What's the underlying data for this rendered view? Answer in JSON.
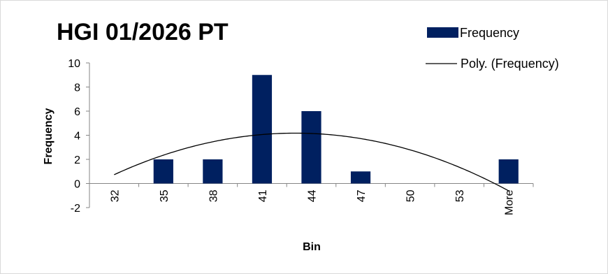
{
  "chart_data": {
    "type": "bar",
    "title": "HGI 01/2026 PT",
    "xlabel": "Bin",
    "ylabel": "Frequency",
    "categories": [
      "32",
      "35",
      "38",
      "41",
      "44",
      "47",
      "50",
      "53",
      "More"
    ],
    "series": [
      {
        "name": "Frequency",
        "type": "bar",
        "color": "#002060",
        "values": [
          0,
          2,
          2,
          9,
          6,
          1,
          0,
          0,
          2
        ]
      },
      {
        "name": "Poly. (Frequency)",
        "type": "line",
        "color": "#000000",
        "trendline": "polynomial"
      }
    ],
    "ylim": [
      -2,
      10
    ],
    "yticks": [
      -2,
      0,
      2,
      4,
      6,
      8,
      10
    ],
    "grid": false,
    "legend": "top-right"
  }
}
